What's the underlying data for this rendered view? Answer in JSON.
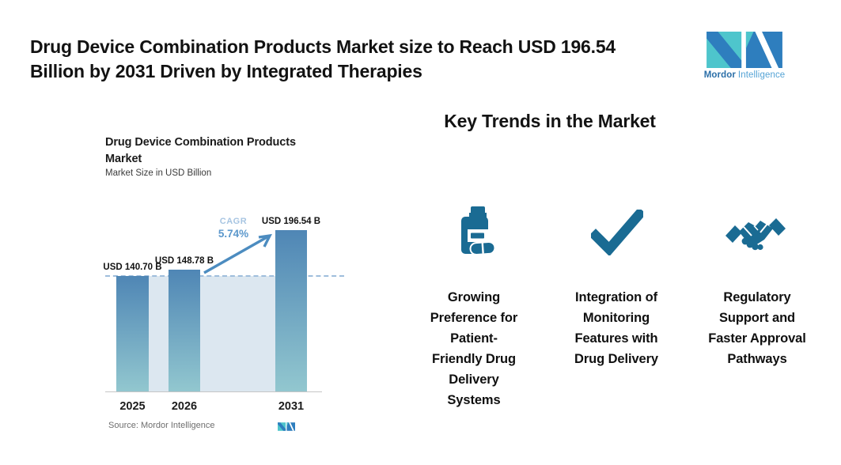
{
  "header": {
    "title": "Drug Device Combination Products Market size to Reach USD 196.54\nBillion by 2031 Driven by Integrated Therapies",
    "brand": {
      "name_bold": "Mordor",
      "name_light": "Intelligence"
    }
  },
  "chart": {
    "title": "Drug Device Combination Products\nMarket",
    "subtitle": "Market Size in USD Billion",
    "cagr_label": "CAGR",
    "cagr_value": "5.74%",
    "source": "Source: Mordor Intelligence"
  },
  "chart_data": {
    "type": "bar",
    "title": "Drug Device Combination Products Market",
    "ylabel": "Market Size in USD Billion",
    "xlabel": "",
    "categories": [
      "2025",
      "2026",
      "2031"
    ],
    "values": [
      140.7,
      148.78,
      196.54
    ],
    "bar_labels": [
      "USD 140.70 B",
      "USD 148.78 B",
      "USD 196.54 B"
    ],
    "cagr_percent": 5.74,
    "dashed_reference_value": 140.7,
    "ylim": [
      0,
      196.54
    ],
    "grid": false,
    "legend": false
  },
  "trends": {
    "heading": "Key Trends in the Market",
    "items": [
      {
        "icon": "pill-bottle-icon",
        "label": "Growing\nPreference for\nPatient-\nFriendly Drug\nDelivery\nSystems"
      },
      {
        "icon": "checkmark-icon",
        "label": "Integration of\nMonitoring\nFeatures with\nDrug Delivery"
      },
      {
        "icon": "handshake-icon",
        "label": "Regulatory\nSupport and\nFaster Approval\nPathways"
      }
    ]
  },
  "colors": {
    "icon_teal": "#1A6B93",
    "bar_top": "#4F86B5",
    "bar_bottom": "#92C7CF",
    "backdrop": "#DCE7F0",
    "dashed_line": "#9FBEDC",
    "arrow": "#4C8CC0",
    "cagr_label": "#A7C5E2",
    "cagr_value": "#5C98CC",
    "logo_teal": "#4EC5CC",
    "logo_blue": "#2E7EBE",
    "brand_bold": "#2B6FA8",
    "brand_light": "#54A3D5"
  }
}
